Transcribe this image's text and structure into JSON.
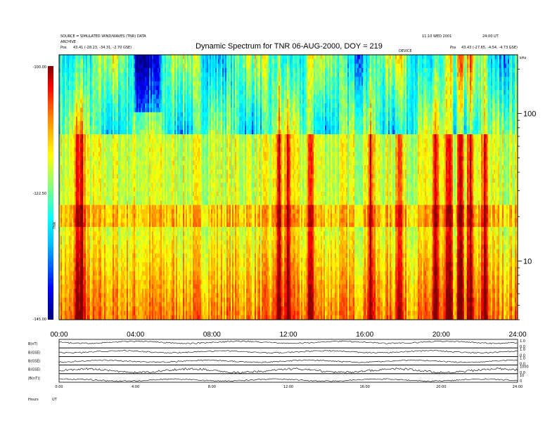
{
  "header": {
    "left_line1": "SOURCE = SIMULATED WIND/WAVES (TNR) DATA",
    "left_line2": "ARCHIVE",
    "left_pos_label": "Pos",
    "left_pos_value": "43.41 (-28.23, -34.31, -2.70 GSE)",
    "right_line1": "11:10 WED 2001",
    "right_line2": "24:00 UT",
    "right_pos_label": "Pos",
    "right_pos_value": "43.43 (-27.65, -4.54, -4.73 GSE)",
    "mid_label": "DEVICE"
  },
  "chart_data": {
    "type": "heatmap",
    "title": "Dynamic Spectrum for TNR 06-AUG-2000, DOY = 219",
    "xlabel": "",
    "ylabel": "",
    "x_range": [
      "00:00",
      "24:00"
    ],
    "x_ticks": [
      "00:00",
      "04:00",
      "08:00",
      "12:00",
      "16:00",
      "20:00",
      "24:00"
    ],
    "y_scale": "log",
    "y_unit": "kHz",
    "y_range": [
      4,
      250
    ],
    "y_ticks": [
      {
        "value": 100,
        "label": "100"
      },
      {
        "value": 10,
        "label": "10"
      }
    ],
    "colorbar": {
      "range": [
        -145.0,
        -100.0
      ],
      "ticks": [
        "-100.00",
        "-122.50",
        "-145.00"
      ],
      "label": "TNR",
      "colors": [
        "#00007f",
        "#0000ff",
        "#00bfff",
        "#00ffff",
        "#7fff7f",
        "#ffff00",
        "#ff8000",
        "#ff0000",
        "#7f0000"
      ]
    },
    "spectrum_bands": {
      "upper_frequency_kHz": 70,
      "middle_frequency_kHz": 20,
      "red_features_hours": [
        1.0,
        1.2,
        11.5,
        12.0,
        13.2,
        16.3,
        17.8,
        19.7,
        20.4,
        21.0,
        21.5,
        22.3
      ]
    }
  },
  "panels": {
    "labels": [
      "B(nT)",
      "B(GSE)",
      "B(GSE)",
      "B(GSE)",
      "|B(nT)|"
    ],
    "right_ticks": [
      [
        "1.0",
        "0.0"
      ],
      [
        "1.0",
        "0.0"
      ],
      [
        "1.0",
        "0.0"
      ],
      [
        "1000",
        "0.0"
      ],
      [
        "10",
        "0"
      ]
    ],
    "x_ticks": [
      "0:00",
      "4:00",
      "8:00",
      "12:00",
      "16:00",
      "20:00",
      "24:00"
    ],
    "footer_label": "Hours",
    "footer_value": "UT"
  }
}
